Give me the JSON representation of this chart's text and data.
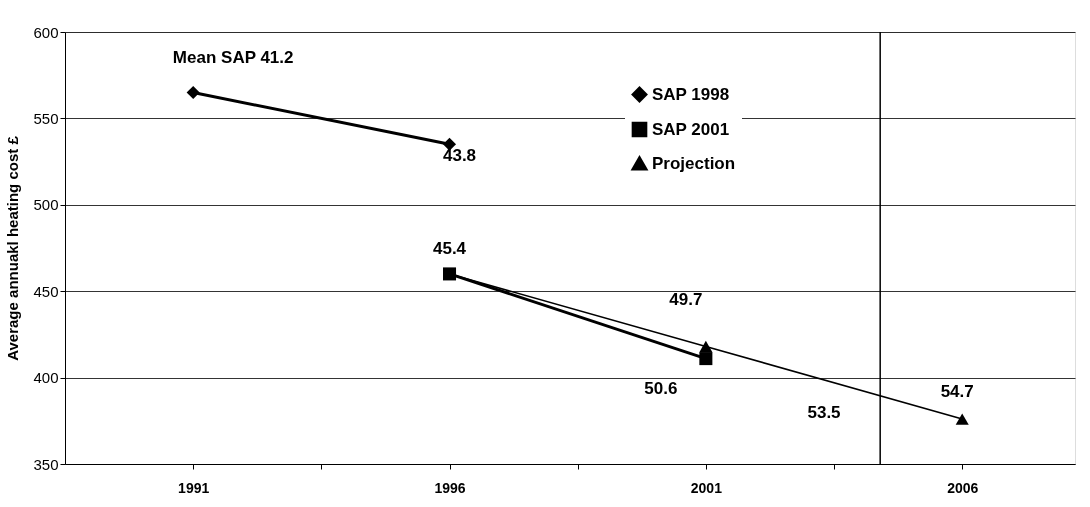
{
  "chart_data": {
    "type": "line",
    "ylabel": "Average annuakl heating cost £",
    "xlim": [
      1988.5,
      2008.2
    ],
    "xticks": [
      1991,
      {
        "value": 1993.5,
        "label": null
      },
      1996,
      {
        "value": 1998.5,
        "label": null
      },
      2001,
      {
        "value": 2003.5,
        "label": null
      },
      2006
    ],
    "ylim": [
      350,
      600
    ],
    "yticks": [
      350,
      400,
      450,
      500,
      550,
      600
    ],
    "grid": "y",
    "legend": "top right",
    "series": [
      {
        "name": "SAP 1998",
        "color": "#000000",
        "marker": "diamond",
        "x": [
          1991,
          1996
        ],
        "values": [
          565,
          535
        ]
      },
      {
        "name": "SAP 2001",
        "color": "#000000",
        "marker": "square",
        "x": [
          1996,
          2001
        ],
        "values": [
          460,
          411
        ]
      },
      {
        "name": "Projection",
        "color": "#000000",
        "marker": "triangle",
        "x": [
          1996,
          2001,
          2006
        ],
        "values": [
          460,
          418,
          376
        ]
      }
    ],
    "ref_lines": [
      {
        "axis": "x",
        "value": 2004.4,
        "label": null,
        "color": "#000000"
      }
    ],
    "annotations": [
      {
        "text": "Mean SAP 41.2",
        "x": 1991,
        "y": 565
      },
      {
        "text": "43.8",
        "x": 1996,
        "y": 535
      },
      {
        "text": "45.4",
        "x": 1996,
        "y": 460
      },
      {
        "text": "49.7",
        "x": 2001,
        "y": 418
      },
      {
        "text": "50.6",
        "x": 2001,
        "y": 411
      },
      {
        "text": "53.5",
        "x": 2003.5,
        "y": 397
      },
      {
        "text": "54.7",
        "x": 2006,
        "y": 376
      }
    ]
  }
}
